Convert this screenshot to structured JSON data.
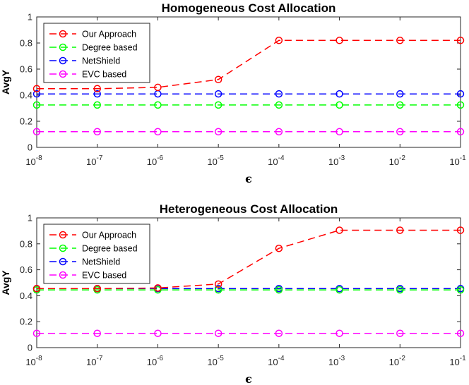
{
  "chart_data": [
    {
      "type": "line",
      "title": "Homogeneous Cost Allocation",
      "xlabel": "ϵ",
      "ylabel": "AvgY",
      "x": [
        -8,
        -7,
        -6,
        -5,
        -4,
        -3,
        -2,
        -1
      ],
      "x_scale": "log10",
      "x_tick_labels": [
        {
          "base": "10",
          "exp": "-8"
        },
        {
          "base": "10",
          "exp": "-7"
        },
        {
          "base": "10",
          "exp": "-6"
        },
        {
          "base": "10",
          "exp": "-5"
        },
        {
          "base": "10",
          "exp": "-4"
        },
        {
          "base": "10",
          "exp": "-3"
        },
        {
          "base": "10",
          "exp": "-2"
        },
        {
          "base": "10",
          "exp": "-1"
        }
      ],
      "ylim": [
        0,
        1
      ],
      "y_ticks": [
        "0",
        "0.2",
        "0.4",
        "0.6",
        "0.8",
        "1"
      ],
      "legend_position": "top-left",
      "series": [
        {
          "name": "Our Approach",
          "color": "#ff0000",
          "values": [
            0.45,
            0.45,
            0.46,
            0.52,
            0.82,
            0.82,
            0.82,
            0.82
          ]
        },
        {
          "name": "Degree based",
          "color": "#00ff00",
          "values": [
            0.325,
            0.325,
            0.325,
            0.325,
            0.325,
            0.325,
            0.325,
            0.325
          ]
        },
        {
          "name": "NetShield",
          "color": "#0000ff",
          "values": [
            0.41,
            0.41,
            0.41,
            0.41,
            0.41,
            0.41,
            0.41,
            0.41
          ]
        },
        {
          "name": "EVC based",
          "color": "#ff00ff",
          "values": [
            0.12,
            0.12,
            0.12,
            0.12,
            0.12,
            0.12,
            0.12,
            0.12
          ]
        }
      ]
    },
    {
      "type": "line",
      "title": "Heterogeneous Cost Allocation",
      "xlabel": "ϵ",
      "ylabel": "AvgY",
      "x": [
        -8,
        -7,
        -6,
        -5,
        -4,
        -3,
        -2,
        -1
      ],
      "x_scale": "log10",
      "x_tick_labels": [
        {
          "base": "10",
          "exp": "-8"
        },
        {
          "base": "10",
          "exp": "-7"
        },
        {
          "base": "10",
          "exp": "-6"
        },
        {
          "base": "10",
          "exp": "-5"
        },
        {
          "base": "10",
          "exp": "-4"
        },
        {
          "base": "10",
          "exp": "-3"
        },
        {
          "base": "10",
          "exp": "-2"
        },
        {
          "base": "10",
          "exp": "-1"
        }
      ],
      "ylim": [
        0,
        1
      ],
      "y_ticks": [
        "0",
        "0.2",
        "0.4",
        "0.6",
        "0.8",
        "1"
      ],
      "legend_position": "top-left",
      "series": [
        {
          "name": "Our Approach",
          "color": "#ff0000",
          "values": [
            0.455,
            0.455,
            0.46,
            0.49,
            0.765,
            0.905,
            0.905,
            0.905
          ]
        },
        {
          "name": "Degree based",
          "color": "#00ff00",
          "values": [
            0.445,
            0.445,
            0.445,
            0.445,
            0.445,
            0.445,
            0.445,
            0.445
          ]
        },
        {
          "name": "NetShield",
          "color": "#0000ff",
          "values": [
            0.455,
            0.455,
            0.455,
            0.455,
            0.455,
            0.455,
            0.455,
            0.455
          ]
        },
        {
          "name": "EVC based",
          "color": "#ff00ff",
          "values": [
            0.11,
            0.11,
            0.11,
            0.11,
            0.11,
            0.11,
            0.11,
            0.11
          ]
        }
      ]
    }
  ]
}
